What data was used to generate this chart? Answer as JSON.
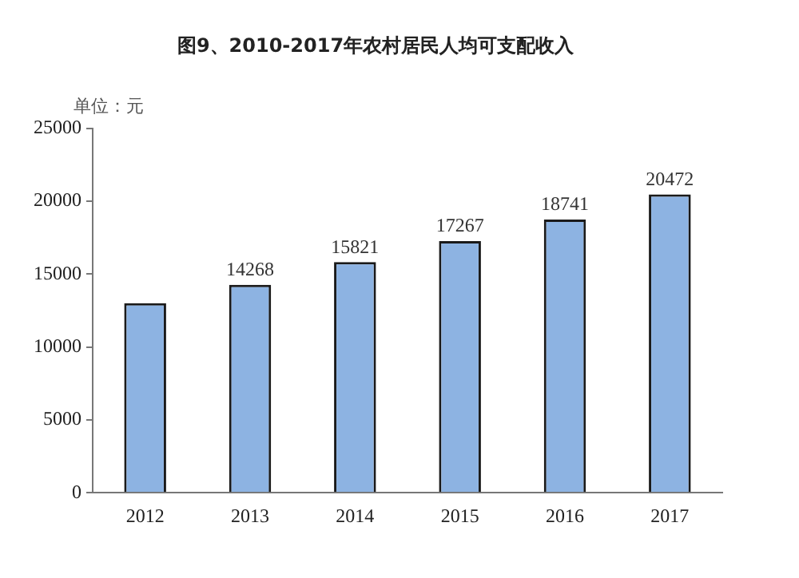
{
  "chart_data": {
    "type": "bar",
    "title": "图9、2010-2017年农村居民人均可支配收入",
    "ylabel": "单位：元",
    "categories": [
      "2012",
      "2013",
      "2014",
      "2015",
      "2016",
      "2017"
    ],
    "values": [
      13000,
      14268,
      15821,
      17267,
      18741,
      20472
    ],
    "value_labels": [
      null,
      "14268",
      "15821",
      "17267",
      "18741",
      "20472"
    ],
    "color": "#8db3e2",
    "ylim": [
      0,
      25000
    ],
    "yticks": [
      0,
      5000,
      10000,
      15000,
      20000,
      25000
    ],
    "grid": false,
    "legend": false
  }
}
